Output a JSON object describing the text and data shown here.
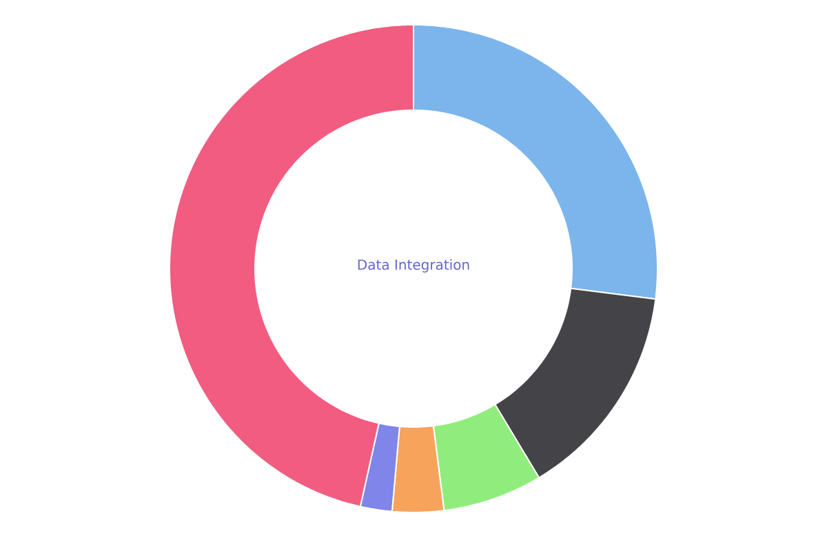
{
  "chart_data": {
    "type": "donut",
    "title": "Data Integration",
    "categories": [
      null,
      null,
      null,
      null,
      null,
      null
    ],
    "values": [
      27.0,
      14.4,
      6.6,
      3.4,
      2.1,
      46.5
    ],
    "colors": [
      "#7cb5ec",
      "#434348",
      "#90ed7d",
      "#f7a35c",
      "#8085e9",
      "#f15c80"
    ]
  }
}
